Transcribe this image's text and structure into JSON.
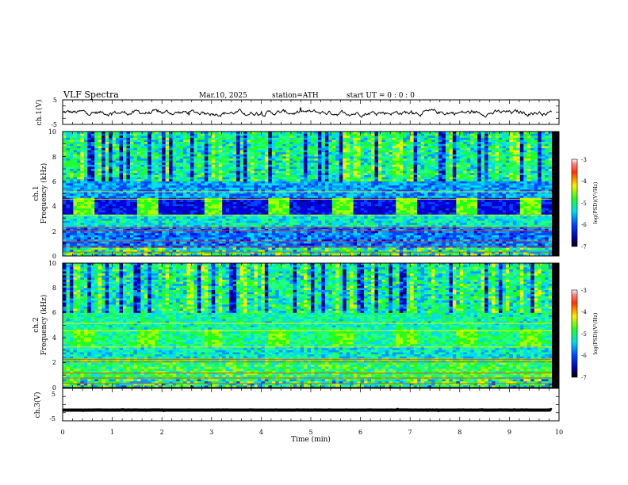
{
  "header": {
    "title": "VLF Spectra",
    "date": "Mar.10, 2025",
    "station": "station=ATH",
    "start": "start UT = 0 : 0 : 0"
  },
  "chart_data": [
    {
      "type": "line",
      "panel": "ch1-waveform",
      "ylabel": "ch.1(V)",
      "ylim": [
        -5,
        5
      ],
      "yticks": [
        "5",
        "-5"
      ],
      "xlim": [
        0,
        10
      ],
      "series": [
        {
          "values_note": "",
          "mean": -0.2,
          "amplitude": 0.8
        }
      ]
    },
    {
      "type": "heatmap",
      "panel": "ch1-spectrogram",
      "ylabel_lines": [
        "ch.1",
        "Frequency (kHz)"
      ],
      "ylim": [
        0,
        10
      ],
      "yticks": [
        "0",
        "2",
        "4",
        "6",
        "8",
        "10"
      ],
      "xlim": [
        0,
        10
      ],
      "colorbar": {
        "label": "log(PSD)(V²/Hz)",
        "range": [
          -7,
          -3
        ],
        "ticks": [
          "-3",
          "-4",
          "-5",
          "-6",
          "-7"
        ]
      },
      "bursts_min": [
        0.2,
        1.5,
        2.8,
        4.1,
        5.4,
        6.7,
        7.9,
        9.2
      ]
    },
    {
      "type": "heatmap",
      "panel": "ch2-spectrogram",
      "ylabel_lines": [
        "ch.2",
        "Frequency (kHz)"
      ],
      "ylim": [
        0,
        10
      ],
      "yticks": [
        "0",
        "2",
        "4",
        "6",
        "8",
        "10"
      ],
      "xlim": [
        0,
        10
      ],
      "colorbar": {
        "label": "log(PSD)(V²/Hz)",
        "range": [
          -7,
          -3
        ],
        "ticks": [
          "-3",
          "-4",
          "-5",
          "-6",
          "-7"
        ]
      },
      "bursts_min": [
        0.2,
        1.5,
        2.8,
        4.1,
        5.4,
        6.7,
        7.9,
        9.2
      ]
    },
    {
      "type": "line",
      "panel": "ch3-waveform",
      "ylabel": "ch.3(V)",
      "ylim": [
        -5,
        5
      ],
      "yticks": [
        "5",
        "-5"
      ],
      "xlim": [
        0,
        10
      ],
      "xlabel": "Time (min)",
      "xticks": [
        "0",
        "1",
        "2",
        "3",
        "4",
        "5",
        "6",
        "7",
        "8",
        "9",
        "10"
      ],
      "series": [
        {
          "mean": -1.7,
          "amplitude": 0.1
        }
      ]
    }
  ]
}
